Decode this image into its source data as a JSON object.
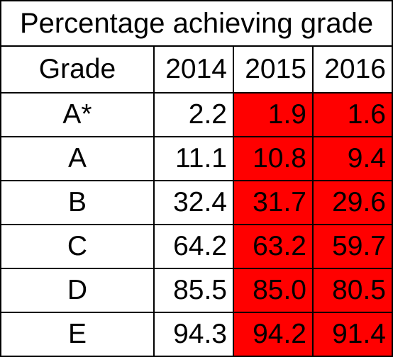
{
  "title": "Percentage achieving grade",
  "headers": [
    "Grade",
    "2014",
    "2015",
    "2016"
  ],
  "rows": [
    {
      "grade": "A*",
      "y2014": "2.2",
      "y2015": "1.9",
      "y2016": "1.6"
    },
    {
      "grade": "A",
      "y2014": "11.1",
      "y2015": "10.8",
      "y2016": "9.4"
    },
    {
      "grade": "B",
      "y2014": "32.4",
      "y2015": "31.7",
      "y2016": "29.6"
    },
    {
      "grade": "C",
      "y2014": "64.2",
      "y2015": "63.2",
      "y2016": "59.7"
    },
    {
      "grade": "D",
      "y2014": "85.5",
      "y2015": "85.0",
      "y2016": "80.5"
    },
    {
      "grade": "E",
      "y2014": "94.3",
      "y2015": "94.2",
      "y2016": "91.4"
    }
  ],
  "colors": {
    "highlight": "#ff0000",
    "grid": "#000000",
    "background": "#ffffff"
  }
}
